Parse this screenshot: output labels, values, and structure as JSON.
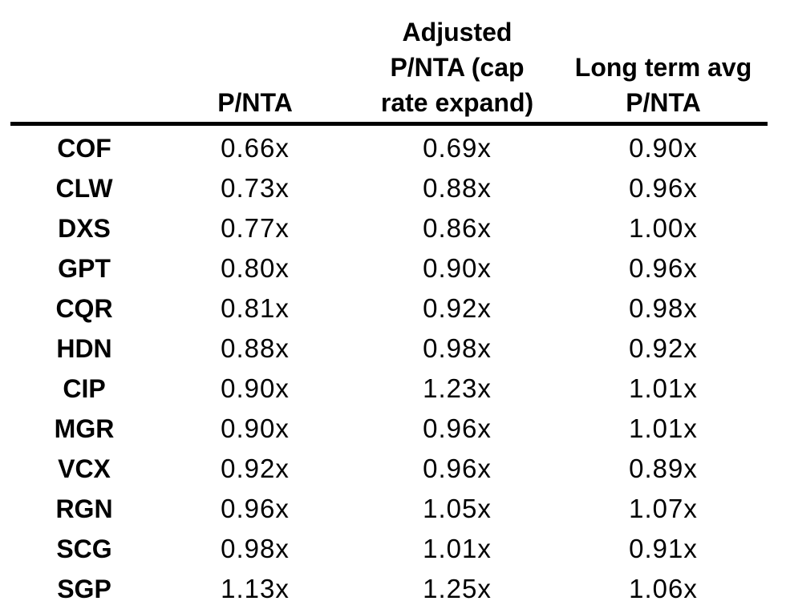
{
  "colors": {
    "background": "#ffffff",
    "text": "#000000",
    "rule": "#000000"
  },
  "table": {
    "columns": [
      {
        "id": "ticker",
        "lines": []
      },
      {
        "id": "pnta",
        "lines": [
          "P/NTA"
        ]
      },
      {
        "id": "adjusted_pnta_cap_rate_expand",
        "lines": [
          "Adjusted",
          "P/NTA (cap",
          "rate expand)"
        ]
      },
      {
        "id": "long_term_avg_pnta",
        "lines": [
          "Long term avg",
          "P/NTA"
        ]
      }
    ],
    "rows": [
      {
        "ticker": "COF",
        "values": [
          "0.66x",
          "0.69x",
          "0.90x"
        ]
      },
      {
        "ticker": "CLW",
        "values": [
          "0.73x",
          "0.88x",
          "0.96x"
        ]
      },
      {
        "ticker": "DXS",
        "values": [
          "0.77x",
          "0.86x",
          "1.00x"
        ]
      },
      {
        "ticker": "GPT",
        "values": [
          "0.80x",
          "0.90x",
          "0.96x"
        ]
      },
      {
        "ticker": "CQR",
        "values": [
          "0.81x",
          "0.92x",
          "0.98x"
        ]
      },
      {
        "ticker": "HDN",
        "values": [
          "0.88x",
          "0.98x",
          "0.92x"
        ]
      },
      {
        "ticker": "CIP",
        "values": [
          "0.90x",
          "1.23x",
          "1.01x"
        ]
      },
      {
        "ticker": "MGR",
        "values": [
          "0.90x",
          "0.96x",
          "1.01x"
        ]
      },
      {
        "ticker": "VCX",
        "values": [
          "0.92x",
          "0.96x",
          "0.89x"
        ]
      },
      {
        "ticker": "RGN",
        "values": [
          "0.96x",
          "1.05x",
          "1.07x"
        ]
      },
      {
        "ticker": "SCG",
        "values": [
          "0.98x",
          "1.01x",
          "0.91x"
        ]
      },
      {
        "ticker": "SGP",
        "values": [
          "1.13x",
          "1.25x",
          "1.06x"
        ]
      }
    ]
  },
  "chart_data": {
    "type": "table",
    "title": "",
    "columns": [
      "",
      "P/NTA",
      "Adjusted P/NTA (cap rate expand)",
      "Long term avg P/NTA"
    ],
    "rows": [
      [
        "COF",
        "0.66x",
        "0.69x",
        "0.90x"
      ],
      [
        "CLW",
        "0.73x",
        "0.88x",
        "0.96x"
      ],
      [
        "DXS",
        "0.77x",
        "0.86x",
        "1.00x"
      ],
      [
        "GPT",
        "0.80x",
        "0.90x",
        "0.96x"
      ],
      [
        "CQR",
        "0.81x",
        "0.92x",
        "0.98x"
      ],
      [
        "HDN",
        "0.88x",
        "0.98x",
        "0.92x"
      ],
      [
        "CIP",
        "0.90x",
        "1.23x",
        "1.01x"
      ],
      [
        "MGR",
        "0.90x",
        "0.96x",
        "1.01x"
      ],
      [
        "VCX",
        "0.92x",
        "0.96x",
        "0.89x"
      ],
      [
        "RGN",
        "0.96x",
        "1.05x",
        "1.07x"
      ],
      [
        "SCG",
        "0.98x",
        "1.01x",
        "0.91x"
      ],
      [
        "SGP",
        "1.13x",
        "1.25x",
        "1.06x"
      ]
    ]
  }
}
